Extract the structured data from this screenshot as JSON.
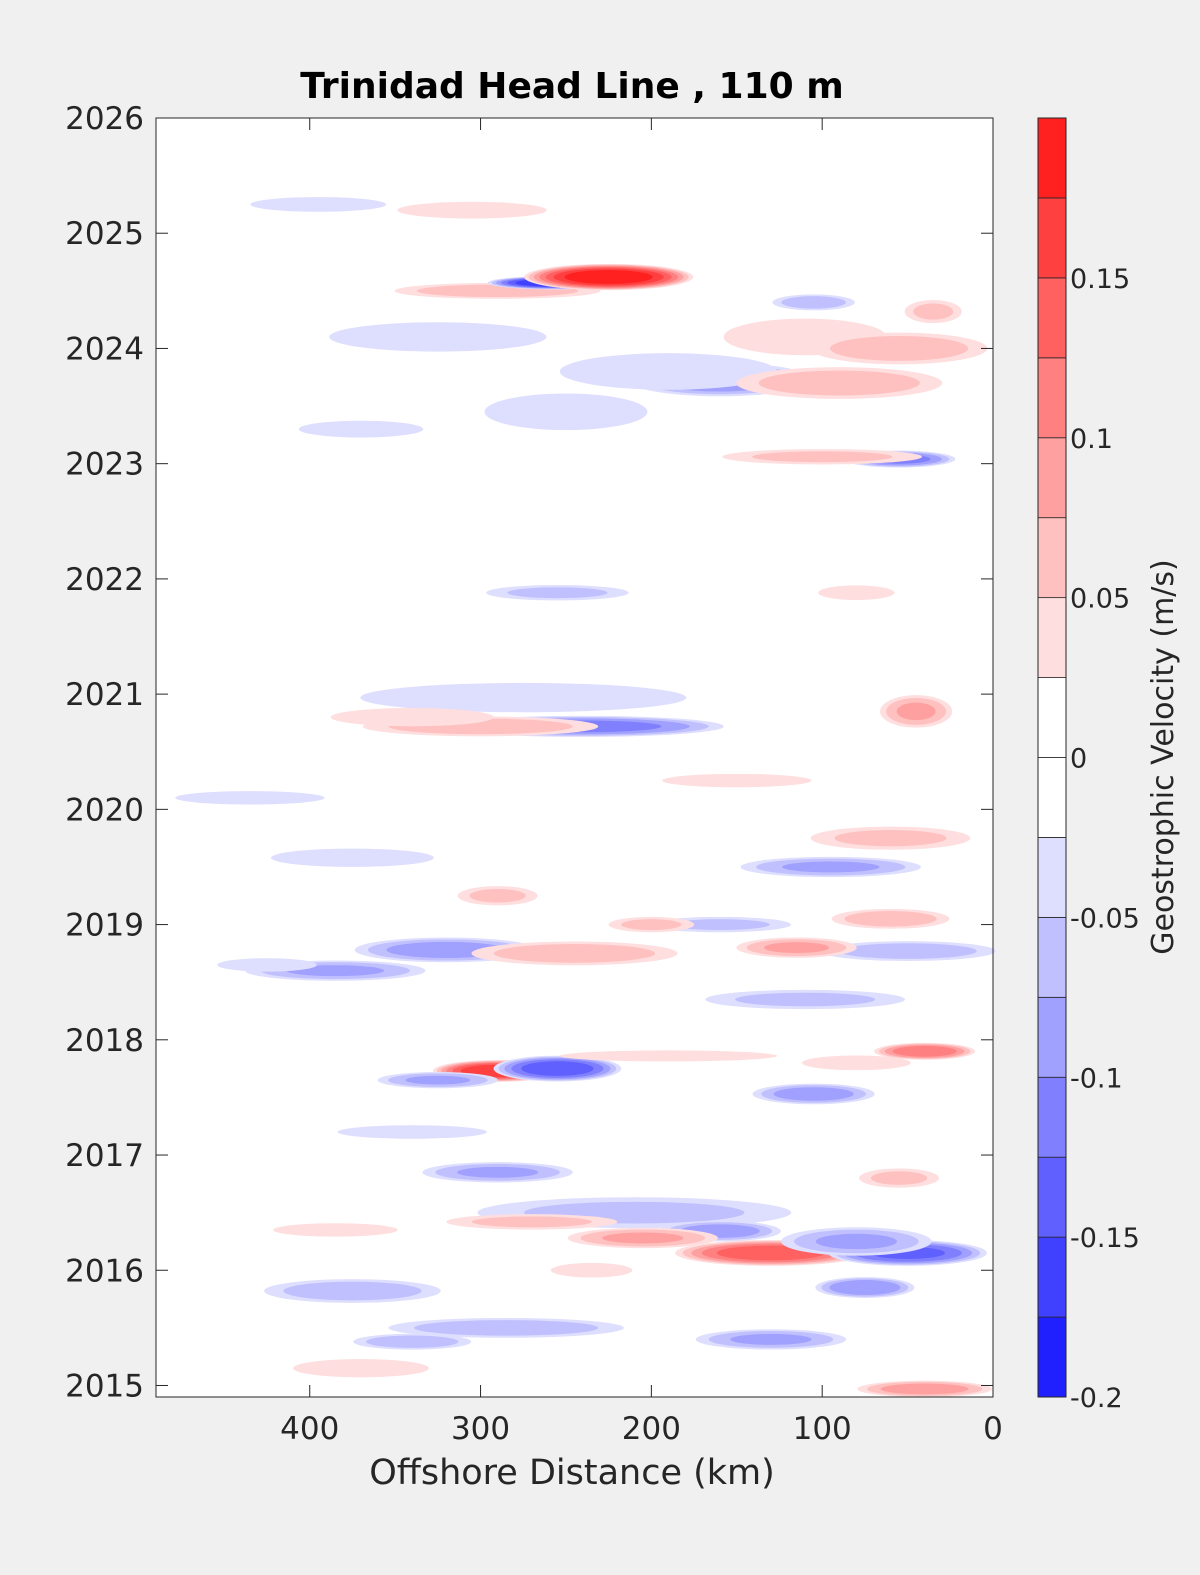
{
  "chart_data": {
    "type": "heatmap",
    "subtype": "filled-contour",
    "title": "Trinidad Head Line , 110 m",
    "xlabel": "Offshore Distance (km)",
    "ylabel": "",
    "xlim": [
      490,
      0
    ],
    "x_reversed": true,
    "ylim": [
      2014.9,
      2026.0
    ],
    "x_ticks": [
      400,
      300,
      200,
      100,
      0
    ],
    "x_tick_labels": [
      "400",
      "300",
      "200",
      "100",
      "0"
    ],
    "y_ticks": [
      2015,
      2016,
      2017,
      2018,
      2019,
      2020,
      2021,
      2022,
      2023,
      2024,
      2025,
      2026
    ],
    "y_tick_labels": [
      "2015",
      "2016",
      "2017",
      "2018",
      "2019",
      "2020",
      "2021",
      "2022",
      "2023",
      "2024",
      "2025",
      "2026"
    ],
    "colorbar": {
      "label": "Geostrophic Velocity (m/s)",
      "range": [
        -0.2,
        0.2
      ],
      "levels": [
        -0.2,
        -0.175,
        -0.15,
        -0.125,
        -0.1,
        -0.075,
        -0.05,
        -0.025,
        0,
        0.025,
        0.05,
        0.075,
        0.1,
        0.125,
        0.15,
        0.175,
        0.2
      ],
      "colors": [
        "#0000ff",
        "#2020ff",
        "#4040ff",
        "#6060ff",
        "#8080ff",
        "#a0a0ff",
        "#c0c0ff",
        "#dedefe",
        "#ffffff",
        "#ffffff",
        "#fedede",
        "#ffc0c0",
        "#ffa0a0",
        "#ff8080",
        "#ff6060",
        "#ff4040",
        "#ff2020",
        "#ff0000"
      ],
      "tick_values": [
        -0.2,
        -0.15,
        -0.1,
        -0.05,
        0,
        0.05,
        0.1,
        0.15
      ],
      "tick_labels": [
        "-0.2",
        "-0.15",
        "-0.1",
        "-0.05",
        "0",
        "0.05",
        "0.1",
        "0.15"
      ]
    },
    "features": [
      {
        "x": 290,
        "y": 2024.5,
        "v": 0.07,
        "sx": 35,
        "sy": 0.04
      },
      {
        "x": 258,
        "y": 2024.57,
        "v": -0.17,
        "sx": 20,
        "sy": 0.03
      },
      {
        "x": 225,
        "y": 2024.62,
        "v": 0.19,
        "sx": 26,
        "sy": 0.06
      },
      {
        "x": 160,
        "y": 2023.73,
        "v": -0.1,
        "sx": 30,
        "sy": 0.08
      },
      {
        "x": 190,
        "y": 2023.8,
        "v": -0.05,
        "sx": 40,
        "sy": 0.1
      },
      {
        "x": 325,
        "y": 2024.1,
        "v": -0.05,
        "sx": 40,
        "sy": 0.08
      },
      {
        "x": 110,
        "y": 2024.1,
        "v": 0.05,
        "sx": 30,
        "sy": 0.1
      },
      {
        "x": 55,
        "y": 2024.0,
        "v": 0.07,
        "sx": 30,
        "sy": 0.08
      },
      {
        "x": 90,
        "y": 2023.7,
        "v": 0.07,
        "sx": 35,
        "sy": 0.08
      },
      {
        "x": 105,
        "y": 2024.4,
        "v": -0.07,
        "sx": 14,
        "sy": 0.04
      },
      {
        "x": 250,
        "y": 2023.45,
        "v": -0.05,
        "sx": 30,
        "sy": 0.1
      },
      {
        "x": 305,
        "y": 2025.2,
        "v": 0.04,
        "sx": 30,
        "sy": 0.05
      },
      {
        "x": 395,
        "y": 2025.25,
        "v": -0.05,
        "sx": 25,
        "sy": 0.04
      },
      {
        "x": 55,
        "y": 2023.04,
        "v": -0.11,
        "sx": 18,
        "sy": 0.04
      },
      {
        "x": 100,
        "y": 2023.06,
        "v": 0.06,
        "sx": 35,
        "sy": 0.04
      },
      {
        "x": 35,
        "y": 2024.32,
        "v": 0.06,
        "sx": 10,
        "sy": 0.06
      },
      {
        "x": 370,
        "y": 2023.3,
        "v": -0.04,
        "sx": 25,
        "sy": 0.05
      },
      {
        "x": 255,
        "y": 2021.88,
        "v": -0.06,
        "sx": 25,
        "sy": 0.04
      },
      {
        "x": 80,
        "y": 2021.88,
        "v": 0.05,
        "sx": 14,
        "sy": 0.04
      },
      {
        "x": 240,
        "y": 2020.72,
        "v": -0.11,
        "sx": 45,
        "sy": 0.05
      },
      {
        "x": 300,
        "y": 2020.72,
        "v": 0.07,
        "sx": 40,
        "sy": 0.05
      },
      {
        "x": 275,
        "y": 2020.97,
        "v": -0.05,
        "sx": 60,
        "sy": 0.08
      },
      {
        "x": 45,
        "y": 2020.85,
        "v": 0.08,
        "sx": 12,
        "sy": 0.08
      },
      {
        "x": 340,
        "y": 2020.8,
        "v": 0.05,
        "sx": 30,
        "sy": 0.05
      },
      {
        "x": 375,
        "y": 2019.58,
        "v": -0.05,
        "sx": 30,
        "sy": 0.05
      },
      {
        "x": 95,
        "y": 2019.5,
        "v": -0.08,
        "sx": 30,
        "sy": 0.05
      },
      {
        "x": 60,
        "y": 2019.75,
        "v": 0.06,
        "sx": 28,
        "sy": 0.06
      },
      {
        "x": 320,
        "y": 2018.78,
        "v": -0.09,
        "sx": 30,
        "sy": 0.06
      },
      {
        "x": 245,
        "y": 2018.75,
        "v": 0.07,
        "sx": 35,
        "sy": 0.06
      },
      {
        "x": 385,
        "y": 2018.6,
        "v": -0.08,
        "sx": 30,
        "sy": 0.05
      },
      {
        "x": 50,
        "y": 2018.77,
        "v": -0.07,
        "sx": 30,
        "sy": 0.05
      },
      {
        "x": 115,
        "y": 2018.8,
        "v": 0.08,
        "sx": 20,
        "sy": 0.05
      },
      {
        "x": 60,
        "y": 2019.05,
        "v": 0.07,
        "sx": 20,
        "sy": 0.05
      },
      {
        "x": 160,
        "y": 2019.0,
        "v": -0.06,
        "sx": 25,
        "sy": 0.04
      },
      {
        "x": 200,
        "y": 2019.0,
        "v": 0.06,
        "sx": 15,
        "sy": 0.04
      },
      {
        "x": 290,
        "y": 2019.25,
        "v": 0.06,
        "sx": 14,
        "sy": 0.05
      },
      {
        "x": 110,
        "y": 2018.35,
        "v": -0.06,
        "sx": 35,
        "sy": 0.05
      },
      {
        "x": 290,
        "y": 2017.73,
        "v": 0.17,
        "sx": 20,
        "sy": 0.05
      },
      {
        "x": 255,
        "y": 2017.75,
        "v": -0.14,
        "sx": 20,
        "sy": 0.06
      },
      {
        "x": 325,
        "y": 2017.65,
        "v": -0.08,
        "sx": 20,
        "sy": 0.04
      },
      {
        "x": 40,
        "y": 2017.9,
        "v": 0.12,
        "sx": 16,
        "sy": 0.04
      },
      {
        "x": 190,
        "y": 2017.86,
        "v": 0.05,
        "sx": 40,
        "sy": 0.03
      },
      {
        "x": 105,
        "y": 2017.53,
        "v": -0.09,
        "sx": 20,
        "sy": 0.05
      },
      {
        "x": 80,
        "y": 2017.8,
        "v": 0.05,
        "sx": 20,
        "sy": 0.04
      },
      {
        "x": 290,
        "y": 2016.85,
        "v": -0.08,
        "sx": 25,
        "sy": 0.05
      },
      {
        "x": 210,
        "y": 2016.5,
        "v": -0.06,
        "sx": 55,
        "sy": 0.08
      },
      {
        "x": 160,
        "y": 2016.34,
        "v": -0.09,
        "sx": 20,
        "sy": 0.05
      },
      {
        "x": 205,
        "y": 2016.28,
        "v": 0.08,
        "sx": 25,
        "sy": 0.05
      },
      {
        "x": 270,
        "y": 2016.42,
        "v": 0.06,
        "sx": 30,
        "sy": 0.04
      },
      {
        "x": 130,
        "y": 2016.15,
        "v": 0.14,
        "sx": 30,
        "sy": 0.06
      },
      {
        "x": 50,
        "y": 2016.15,
        "v": -0.13,
        "sx": 25,
        "sy": 0.06
      },
      {
        "x": 80,
        "y": 2016.25,
        "v": -0.08,
        "sx": 25,
        "sy": 0.07
      },
      {
        "x": 75,
        "y": 2015.85,
        "v": -0.1,
        "sx": 16,
        "sy": 0.05
      },
      {
        "x": 375,
        "y": 2015.82,
        "v": -0.07,
        "sx": 30,
        "sy": 0.06
      },
      {
        "x": 55,
        "y": 2016.8,
        "v": 0.06,
        "sx": 14,
        "sy": 0.05
      },
      {
        "x": 285,
        "y": 2015.5,
        "v": -0.07,
        "sx": 40,
        "sy": 0.05
      },
      {
        "x": 130,
        "y": 2015.4,
        "v": -0.08,
        "sx": 25,
        "sy": 0.05
      },
      {
        "x": 40,
        "y": 2014.97,
        "v": 0.09,
        "sx": 22,
        "sy": 0.04
      },
      {
        "x": 340,
        "y": 2015.38,
        "v": -0.07,
        "sx": 20,
        "sy": 0.04
      },
      {
        "x": 370,
        "y": 2015.15,
        "v": 0.05,
        "sx": 25,
        "sy": 0.05
      },
      {
        "x": 235,
        "y": 2016.0,
        "v": 0.05,
        "sx": 15,
        "sy": 0.04
      },
      {
        "x": 385,
        "y": 2016.35,
        "v": 0.04,
        "sx": 25,
        "sy": 0.04
      },
      {
        "x": 425,
        "y": 2018.65,
        "v": -0.04,
        "sx": 20,
        "sy": 0.04
      },
      {
        "x": 435,
        "y": 2020.1,
        "v": -0.04,
        "sx": 30,
        "sy": 0.04
      },
      {
        "x": 150,
        "y": 2020.25,
        "v": 0.04,
        "sx": 30,
        "sy": 0.04
      },
      {
        "x": 340,
        "y": 2017.2,
        "v": -0.04,
        "sx": 30,
        "sy": 0.04
      }
    ]
  }
}
